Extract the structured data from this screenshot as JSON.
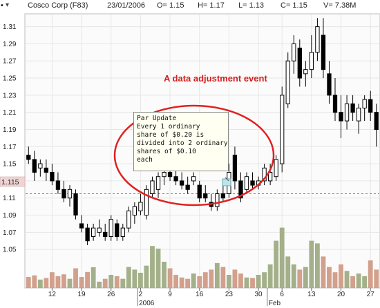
{
  "header": {
    "symbol": "Cosco Corp (F83)",
    "date": "23/01/2006",
    "open": "O= 1.15",
    "high": "H= 1.17",
    "low": "L= 1.13",
    "close": "C= 1.15",
    "volume": "V= 7.38M"
  },
  "annotation": {
    "title": "A data adjustment event",
    "note_lines": [
      "Par Update",
      "Every 1 ordinary",
      "share of $0.20 is",
      "divided into 2 ordinary",
      "shares of $0.10",
      "each"
    ]
  },
  "current_price_label": "1.115",
  "x_axis": {
    "tick_labels": [
      {
        "text": "12",
        "idx": 4
      },
      {
        "text": "19",
        "idx": 9
      },
      {
        "text": "26",
        "idx": 14
      },
      {
        "text": "2",
        "idx": 19
      },
      {
        "text": "9",
        "idx": 24
      },
      {
        "text": "16",
        "idx": 29
      },
      {
        "text": "23",
        "idx": 34
      },
      {
        "text": "30",
        "idx": 39
      },
      {
        "text": "6",
        "idx": 43
      },
      {
        "text": "13",
        "idx": 48
      },
      {
        "text": "20",
        "idx": 53
      },
      {
        "text": "27",
        "idx": 58
      }
    ],
    "period_labels": [
      {
        "text": "2006",
        "idx": 19
      },
      {
        "text": "Feb",
        "idx": 41
      }
    ]
  },
  "colors": {
    "up_volume": "#a3b089",
    "down_volume": "#d2a08c",
    "circle": "#e02020",
    "annotation_text": "#d42020",
    "grid": "#e6e6e6"
  },
  "chart_data": {
    "type": "candlestick",
    "ylim": [
      1.005,
      1.325
    ],
    "yticks": [
      1.05,
      1.07,
      1.09,
      1.11,
      1.13,
      1.15,
      1.17,
      1.19,
      1.21,
      1.23,
      1.25,
      1.27,
      1.29,
      1.31
    ],
    "reference_line": 1.115,
    "volume_axis_max": 25,
    "candles": [
      {
        "o": 1.16,
        "h": 1.17,
        "l": 1.15,
        "c": 1.155,
        "v": 4.2
      },
      {
        "o": 1.155,
        "h": 1.165,
        "l": 1.13,
        "c": 1.14,
        "v": 4.8
      },
      {
        "o": 1.145,
        "h": 1.155,
        "l": 1.135,
        "c": 1.15,
        "v": 3.2
      },
      {
        "o": 1.145,
        "h": 1.155,
        "l": 1.13,
        "c": 1.14,
        "v": 3.8
      },
      {
        "o": 1.14,
        "h": 1.15,
        "l": 1.125,
        "c": 1.13,
        "v": 6.0
      },
      {
        "o": 1.13,
        "h": 1.14,
        "l": 1.115,
        "c": 1.12,
        "v": 4.5
      },
      {
        "o": 1.12,
        "h": 1.13,
        "l": 1.105,
        "c": 1.11,
        "v": 5.2
      },
      {
        "o": 1.11,
        "h": 1.125,
        "l": 1.1,
        "c": 1.12,
        "v": 3.5
      },
      {
        "o": 1.115,
        "h": 1.12,
        "l": 1.085,
        "c": 1.09,
        "v": 7.5
      },
      {
        "o": 1.08,
        "h": 1.09,
        "l": 1.07,
        "c": 1.075,
        "v": 4.2
      },
      {
        "o": 1.075,
        "h": 1.08,
        "l": 1.055,
        "c": 1.06,
        "v": 6.1
      },
      {
        "o": 1.065,
        "h": 1.08,
        "l": 1.06,
        "c": 1.075,
        "v": 7.9
      },
      {
        "o": 1.07,
        "h": 1.085,
        "l": 1.065,
        "c": 1.075,
        "v": 2.4
      },
      {
        "o": 1.07,
        "h": 1.08,
        "l": 1.06,
        "c": 1.065,
        "v": 3.5
      },
      {
        "o": 1.065,
        "h": 1.09,
        "l": 1.06,
        "c": 1.085,
        "v": 5.0
      },
      {
        "o": 1.08,
        "h": 1.085,
        "l": 1.06,
        "c": 1.065,
        "v": 4.5
      },
      {
        "o": 1.065,
        "h": 1.08,
        "l": 1.06,
        "c": 1.075,
        "v": 3.5
      },
      {
        "o": 1.075,
        "h": 1.1,
        "l": 1.07,
        "c": 1.095,
        "v": 8.0
      },
      {
        "o": 1.09,
        "h": 1.105,
        "l": 1.08,
        "c": 1.1,
        "v": 7.0
      },
      {
        "o": 1.095,
        "h": 1.115,
        "l": 1.09,
        "c": 1.105,
        "v": 5.8
      },
      {
        "o": 1.09,
        "h": 1.125,
        "l": 1.085,
        "c": 1.12,
        "v": 8.5
      },
      {
        "o": 1.115,
        "h": 1.135,
        "l": 1.11,
        "c": 1.13,
        "v": 16.0
      },
      {
        "o": 1.12,
        "h": 1.14,
        "l": 1.11,
        "c": 1.135,
        "v": 15.0
      },
      {
        "o": 1.135,
        "h": 1.145,
        "l": 1.125,
        "c": 1.14,
        "v": 10.0
      },
      {
        "o": 1.14,
        "h": 1.15,
        "l": 1.13,
        "c": 1.135,
        "v": 7.5
      },
      {
        "o": 1.135,
        "h": 1.145,
        "l": 1.125,
        "c": 1.13,
        "v": 5.0
      },
      {
        "o": 1.13,
        "h": 1.14,
        "l": 1.12,
        "c": 1.125,
        "v": 4.0
      },
      {
        "o": 1.125,
        "h": 1.135,
        "l": 1.115,
        "c": 1.12,
        "v": 3.5
      },
      {
        "o": 1.13,
        "h": 1.14,
        "l": 1.125,
        "c": 1.135,
        "v": 5.5
      },
      {
        "o": 1.125,
        "h": 1.13,
        "l": 1.105,
        "c": 1.11,
        "v": 4.5
      },
      {
        "o": 1.115,
        "h": 1.125,
        "l": 1.105,
        "c": 1.11,
        "v": 6.0
      },
      {
        "o": 1.105,
        "h": 1.115,
        "l": 1.095,
        "c": 1.1,
        "v": 7.0
      },
      {
        "o": 1.1,
        "h": 1.12,
        "l": 1.095,
        "c": 1.115,
        "v": 9.5
      },
      {
        "o": 1.115,
        "h": 1.125,
        "l": 1.105,
        "c": 1.11,
        "v": 8.0
      },
      {
        "o": 1.115,
        "h": 1.15,
        "l": 1.11,
        "c": 1.14,
        "v": 5.0
      },
      {
        "o": 1.16,
        "h": 1.17,
        "l": 1.12,
        "c": 1.13,
        "v": 7.0
      },
      {
        "o": 1.13,
        "h": 1.14,
        "l": 1.105,
        "c": 1.11,
        "v": 5.5
      },
      {
        "o": 1.12,
        "h": 1.14,
        "l": 1.115,
        "c": 1.135,
        "v": 4.0
      },
      {
        "o": 1.13,
        "h": 1.14,
        "l": 1.12,
        "c": 1.125,
        "v": 3.8
      },
      {
        "o": 1.125,
        "h": 1.135,
        "l": 1.12,
        "c": 1.13,
        "v": 5.0
      },
      {
        "o": 1.13,
        "h": 1.15,
        "l": 1.125,
        "c": 1.145,
        "v": 6.0
      },
      {
        "o": 1.13,
        "h": 1.15,
        "l": 1.125,
        "c": 1.14,
        "v": 9.0
      },
      {
        "o": 1.135,
        "h": 1.16,
        "l": 1.13,
        "c": 1.155,
        "v": 18.0
      },
      {
        "o": 1.15,
        "h": 1.24,
        "l": 1.14,
        "c": 1.23,
        "v": 23.0
      },
      {
        "o": 1.22,
        "h": 1.28,
        "l": 1.215,
        "c": 1.27,
        "v": 12.0
      },
      {
        "o": 1.27,
        "h": 1.3,
        "l": 1.255,
        "c": 1.29,
        "v": 9.0
      },
      {
        "o": 1.285,
        "h": 1.295,
        "l": 1.24,
        "c": 1.25,
        "v": 7.0
      },
      {
        "o": 1.255,
        "h": 1.27,
        "l": 1.24,
        "c": 1.26,
        "v": 8.0
      },
      {
        "o": 1.26,
        "h": 1.3,
        "l": 1.25,
        "c": 1.28,
        "v": 18.0
      },
      {
        "o": 1.28,
        "h": 1.32,
        "l": 1.27,
        "c": 1.31,
        "v": 17.0
      },
      {
        "o": 1.3,
        "h": 1.32,
        "l": 1.25,
        "c": 1.26,
        "v": 12.0
      },
      {
        "o": 1.255,
        "h": 1.27,
        "l": 1.22,
        "c": 1.23,
        "v": 8.0
      },
      {
        "o": 1.23,
        "h": 1.25,
        "l": 1.2,
        "c": 1.21,
        "v": 6.0
      },
      {
        "o": 1.21,
        "h": 1.23,
        "l": 1.18,
        "c": 1.2,
        "v": 9.0
      },
      {
        "o": 1.2,
        "h": 1.23,
        "l": 1.19,
        "c": 1.22,
        "v": 6.5
      },
      {
        "o": 1.22,
        "h": 1.23,
        "l": 1.2,
        "c": 1.21,
        "v": 4.5
      },
      {
        "o": 1.2,
        "h": 1.22,
        "l": 1.185,
        "c": 1.215,
        "v": 5.5
      },
      {
        "o": 1.215,
        "h": 1.23,
        "l": 1.2,
        "c": 1.225,
        "v": 4.5
      },
      {
        "o": 1.225,
        "h": 1.235,
        "l": 1.2,
        "c": 1.21,
        "v": 10.5
      },
      {
        "o": 1.21,
        "h": 1.22,
        "l": 1.17,
        "c": 1.19,
        "v": 7.0
      }
    ]
  }
}
